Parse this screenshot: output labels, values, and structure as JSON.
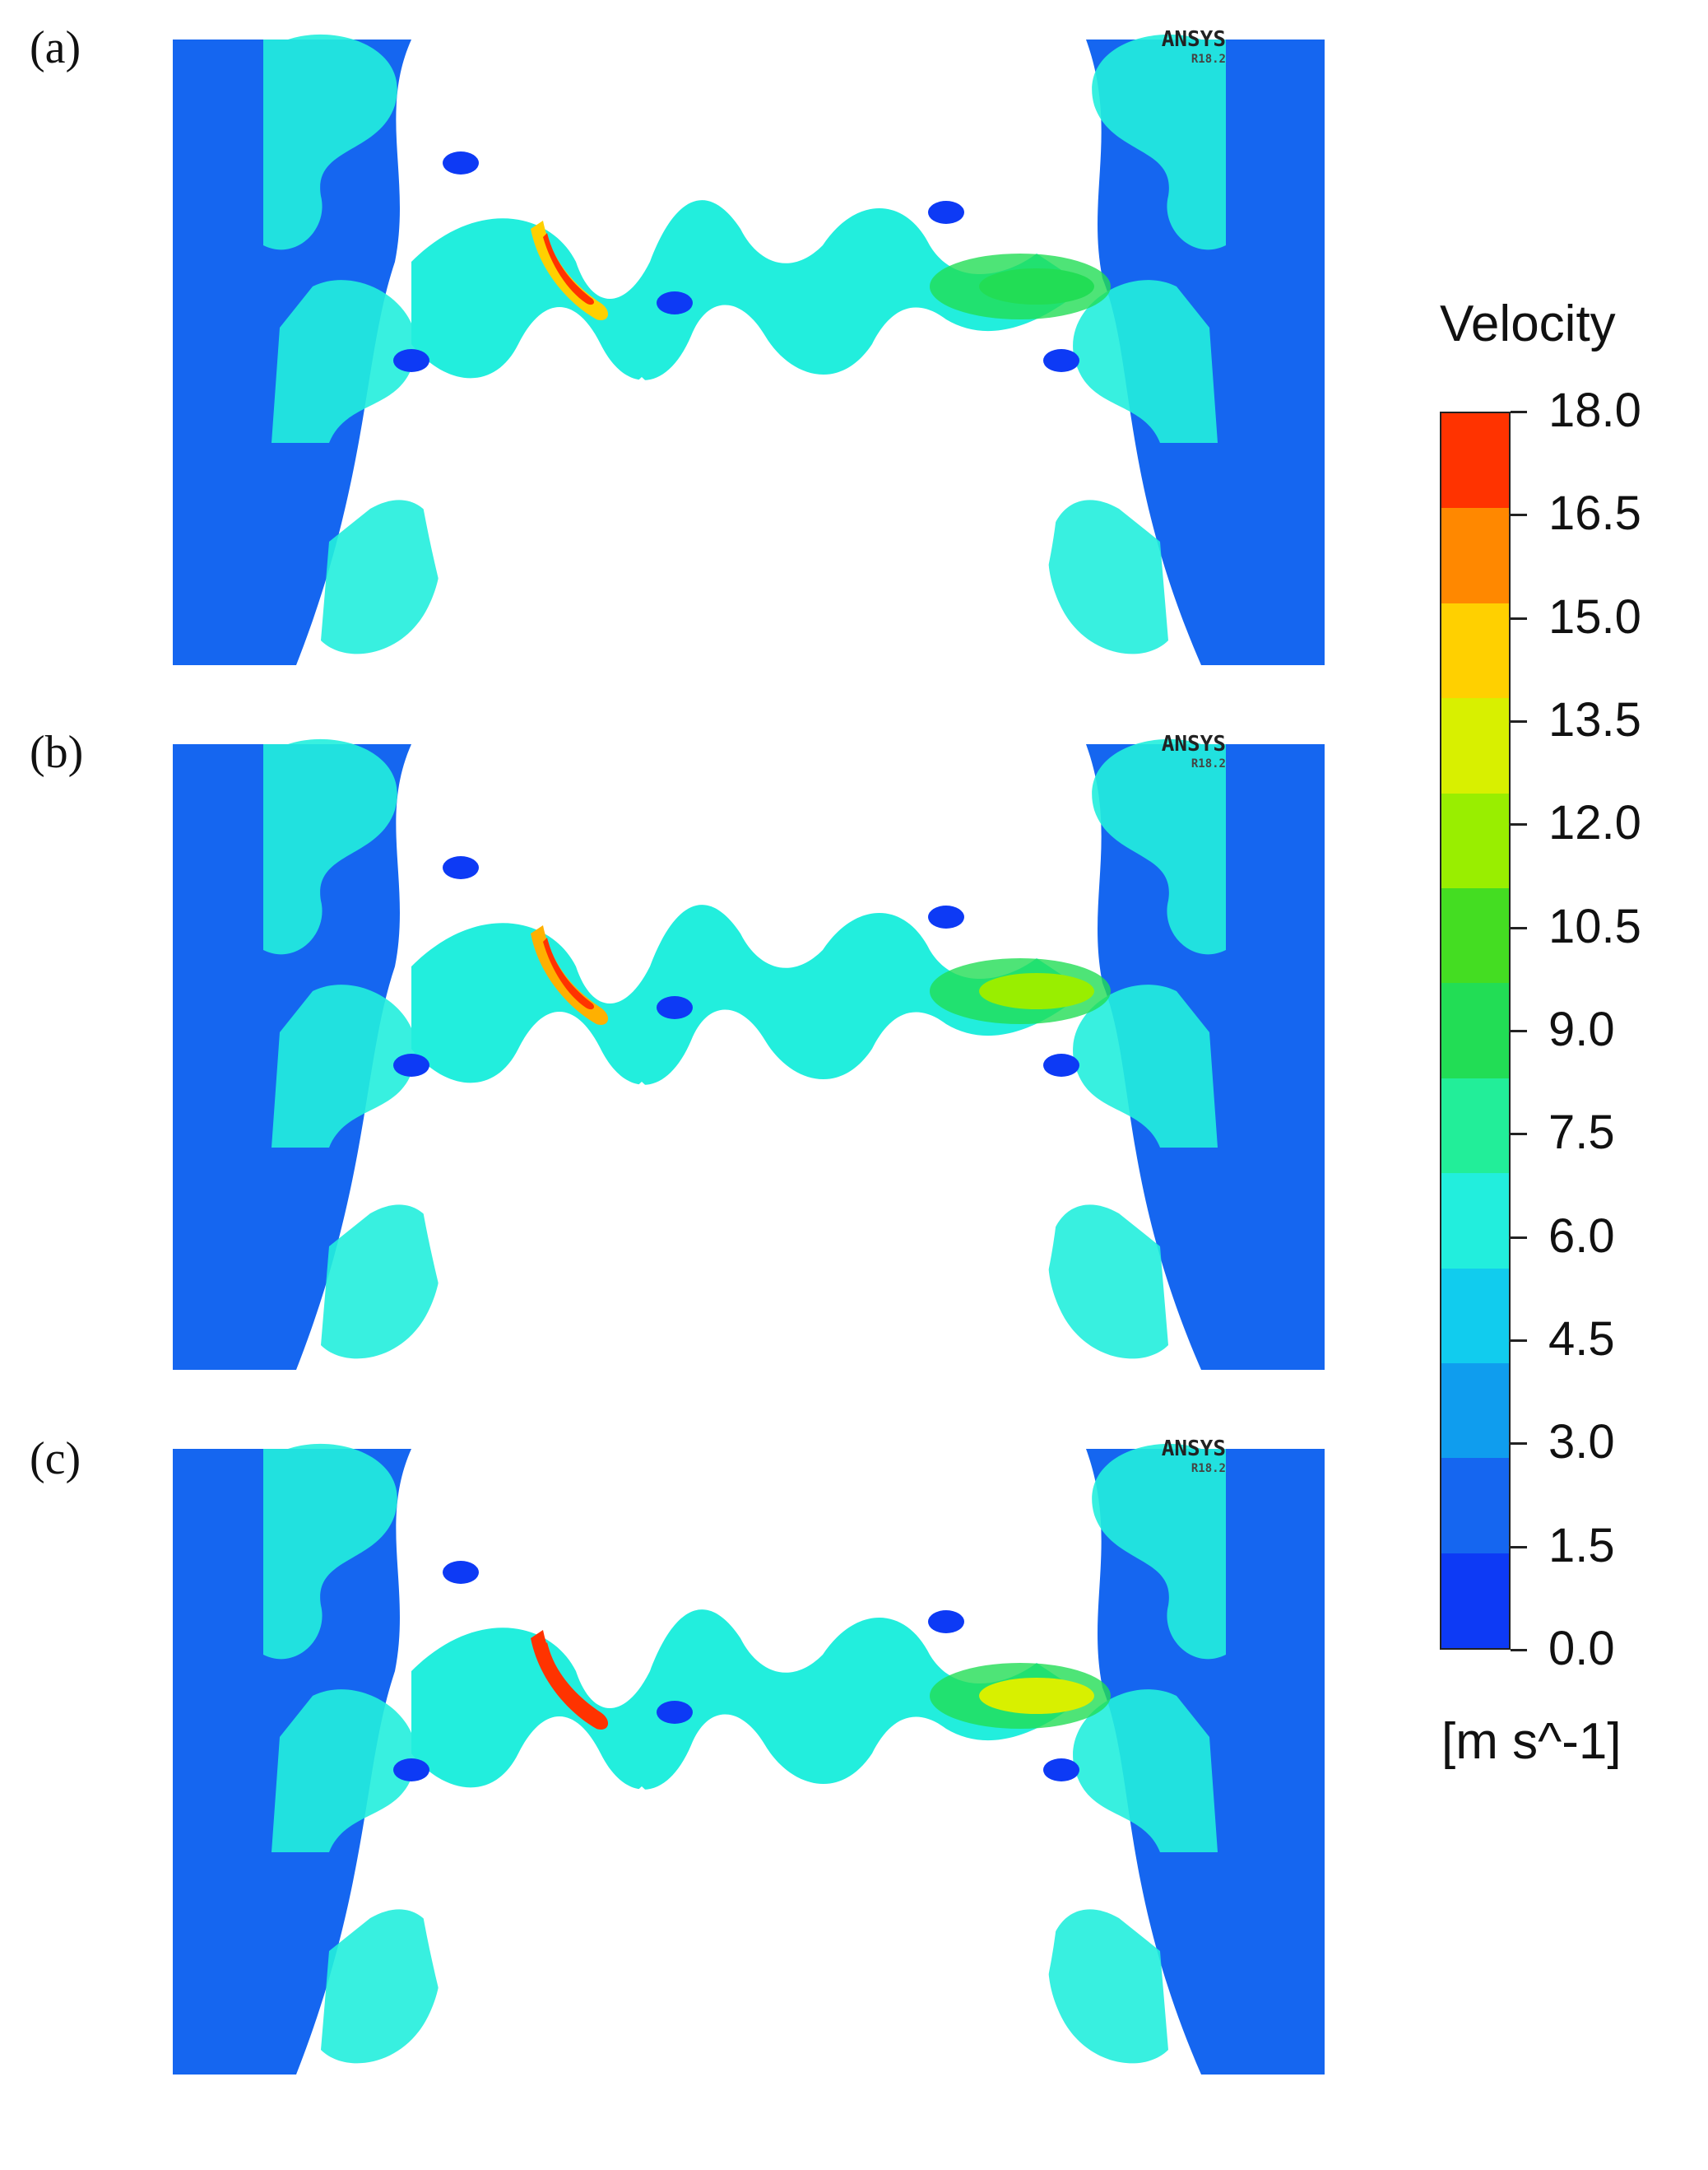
{
  "panels": [
    {
      "label": "(a)",
      "logo": "ANSYS",
      "version": "R18.2"
    },
    {
      "label": "(b)",
      "logo": "ANSYS",
      "version": "R18.2"
    },
    {
      "label": "(c)",
      "logo": "ANSYS",
      "version": "R18.2"
    }
  ],
  "legend": {
    "title": "Velocity",
    "unit": "[m s^-1]",
    "ticks": [
      "18.0",
      "16.5",
      "15.0",
      "13.5",
      "12.0",
      "10.5",
      "9.0",
      "7.5",
      "6.0",
      "4.5",
      "3.0",
      "1.5",
      "0.0"
    ],
    "colors_top_to_bottom": [
      "#ff3300",
      "#ff8800",
      "#ffd000",
      "#d8f000",
      "#99ee00",
      "#44dd22",
      "#22dd55",
      "#22ee99",
      "#22eedd",
      "#11ccee",
      "#0f9dee",
      "#1566f0",
      "#0d3af5"
    ]
  },
  "colors": {
    "low": "#0d3af5",
    "mid_low": "#1566f0",
    "mid": "#0f9dee",
    "cyan": "#22eedd",
    "green": "#22dd55",
    "yellow": "#ffd000",
    "red": "#ff3300"
  }
}
